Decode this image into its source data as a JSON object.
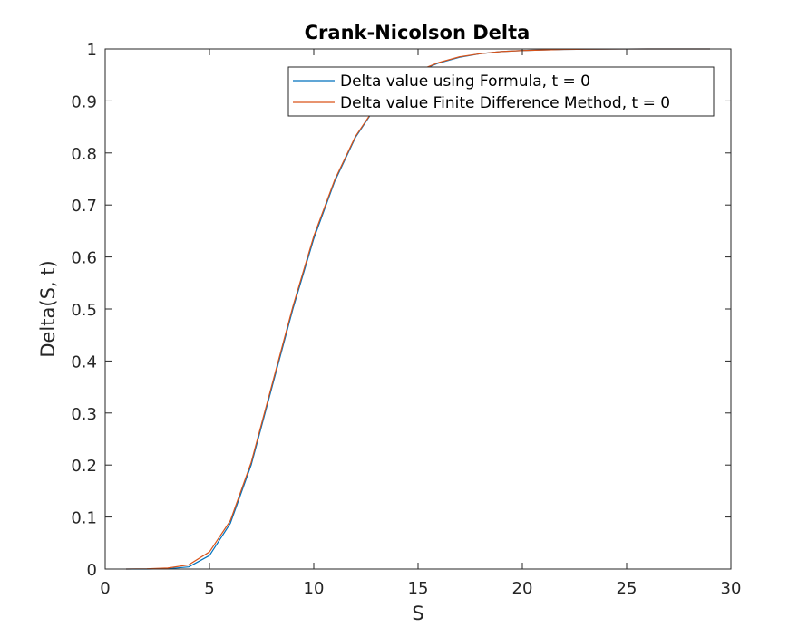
{
  "chart_data": {
    "type": "line",
    "title": "Crank-Nicolson Delta",
    "xlabel": "S",
    "ylabel": "Delta(S, t)",
    "xlim": [
      0,
      30
    ],
    "ylim": [
      0,
      1
    ],
    "xticks": [
      0,
      5,
      10,
      15,
      20,
      25,
      30
    ],
    "yticks": [
      0,
      0.1,
      0.2,
      0.3,
      0.4,
      0.5,
      0.6,
      0.7,
      0.8,
      0.9,
      1
    ],
    "xtick_labels": [
      "0",
      "5",
      "10",
      "15",
      "20",
      "25",
      "30"
    ],
    "ytick_labels": [
      "0",
      "0.1",
      "0.2",
      "0.3",
      "0.4",
      "0.5",
      "0.6",
      "0.7",
      "0.8",
      "0.9",
      "1"
    ],
    "grid": false,
    "legend_position": "top-right",
    "series": [
      {
        "name": "Delta value using Formula, t = 0",
        "color": "#0072BD",
        "x": [
          1,
          2,
          3,
          4,
          5,
          6,
          7,
          8,
          9,
          10,
          11,
          12,
          13,
          14,
          15,
          16,
          17,
          18,
          19,
          20,
          21,
          22,
          23,
          24,
          25,
          26,
          27,
          28,
          29
        ],
        "y": [
          0.0,
          0.0,
          0.0005,
          0.004,
          0.026,
          0.088,
          0.2,
          0.35,
          0.5,
          0.635,
          0.745,
          0.83,
          0.89,
          0.93,
          0.957,
          0.973,
          0.984,
          0.991,
          0.995,
          0.997,
          0.998,
          0.999,
          0.9995,
          0.9998,
          0.9999,
          1.0,
          1.0,
          1.0,
          1.0
        ]
      },
      {
        "name": "Delta value Finite Difference Method, t = 0",
        "color": "#D95319",
        "x": [
          1,
          2,
          3,
          4,
          5,
          6,
          7,
          8,
          9,
          10,
          11,
          12,
          13,
          14,
          15,
          16,
          17,
          18,
          19,
          20,
          21,
          22,
          23,
          24,
          25,
          26,
          27,
          28,
          29
        ],
        "y": [
          0.0,
          0.0005,
          0.002,
          0.008,
          0.033,
          0.093,
          0.205,
          0.355,
          0.505,
          0.64,
          0.748,
          0.832,
          0.891,
          0.931,
          0.958,
          0.974,
          0.985,
          0.991,
          0.995,
          0.997,
          0.998,
          0.999,
          0.9995,
          0.9998,
          0.9999,
          1.0,
          1.0,
          1.0,
          1.0
        ]
      }
    ]
  }
}
